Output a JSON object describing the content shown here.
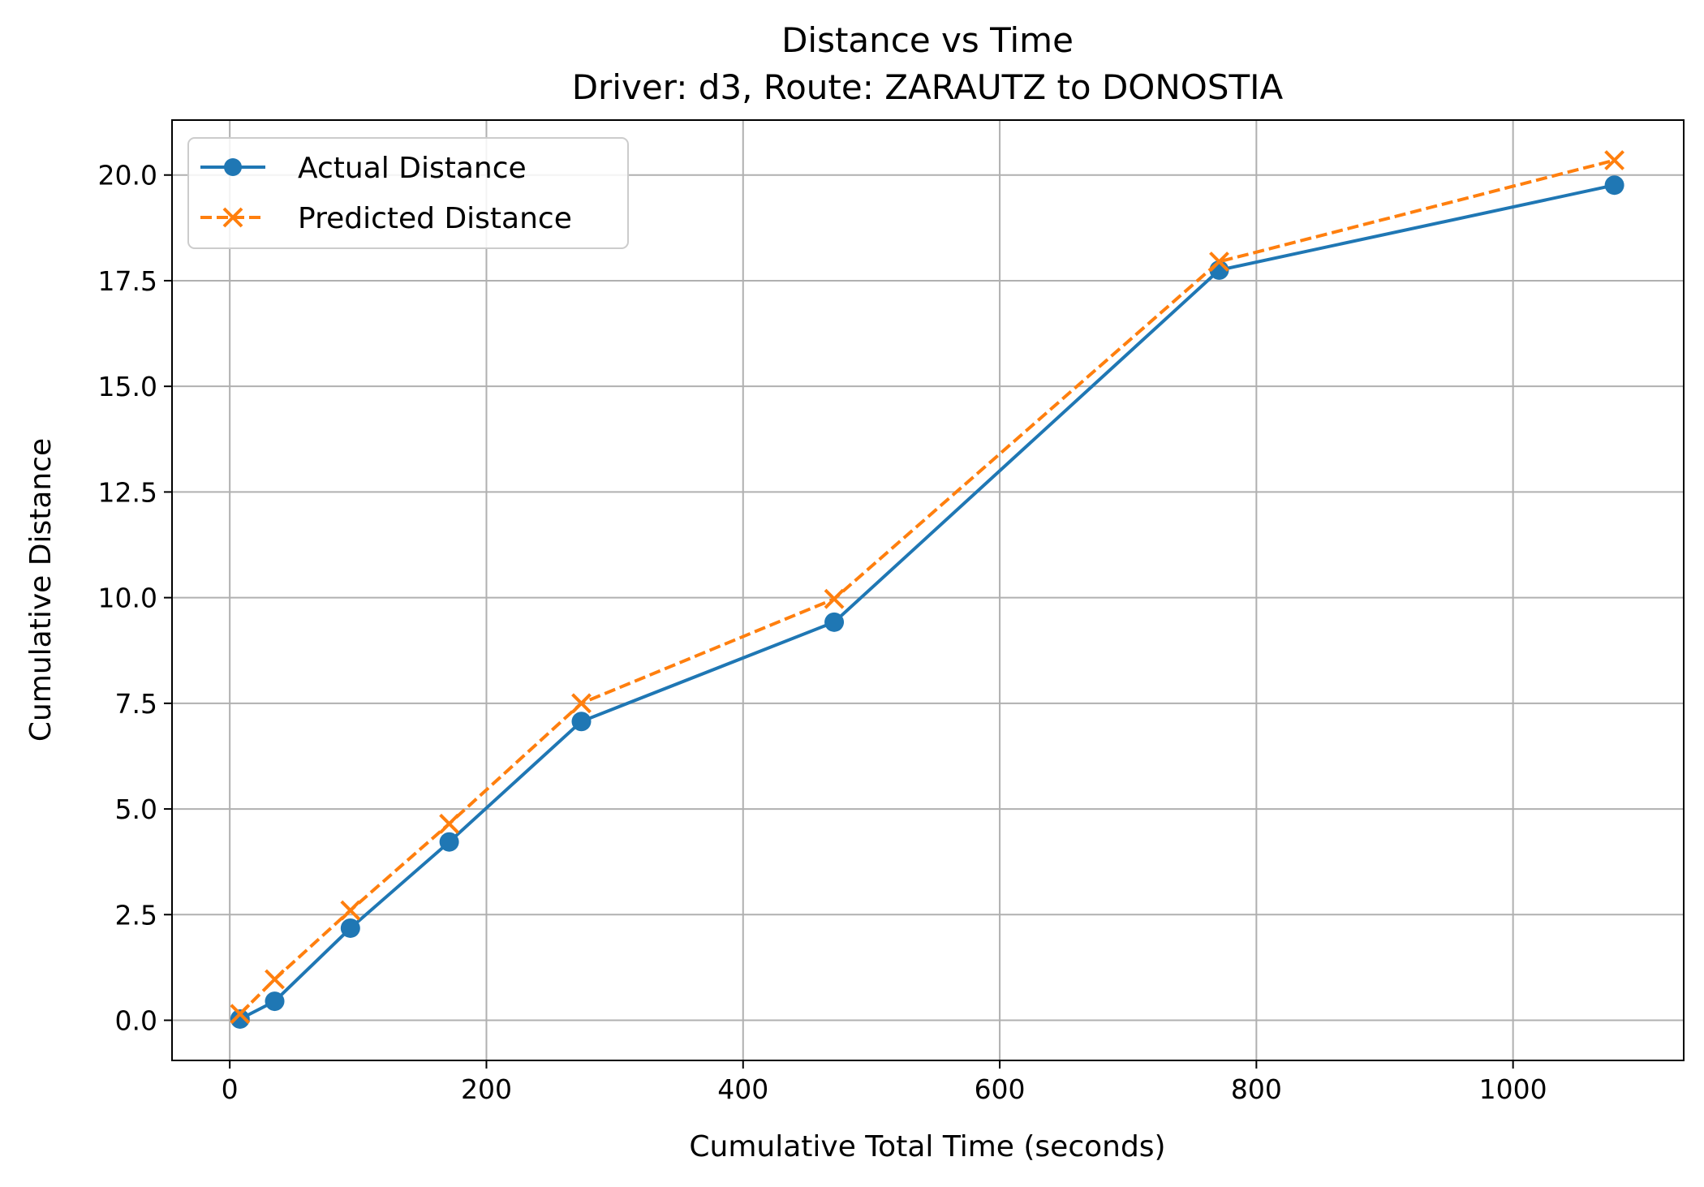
{
  "chart_data": {
    "type": "line",
    "title": "Distance vs Time",
    "subtitle": "Driver: d3, Route: ZARAUTZ to DONOSTIA",
    "xlabel": "Cumulative Total Time (seconds)",
    "ylabel": "Cumulative Distance",
    "xlim": [
      -45,
      1133
    ],
    "ylim": [
      -0.95,
      21.3
    ],
    "xticks": [
      0,
      200,
      400,
      600,
      800,
      1000
    ],
    "xtick_labels": [
      "0",
      "200",
      "400",
      "600",
      "800",
      "1000"
    ],
    "yticks": [
      0,
      2.5,
      5,
      7.5,
      10,
      12.5,
      15,
      17.5,
      20
    ],
    "ytick_labels": [
      "0.0",
      "2.5",
      "5.0",
      "7.5",
      "10.0",
      "12.5",
      "15.0",
      "17.5",
      "20.0"
    ],
    "grid": true,
    "legend_position": "upper-left",
    "x": [
      8,
      35,
      94,
      171,
      274,
      471,
      771,
      1079
    ],
    "series": [
      {
        "name": "Actual Distance",
        "values": [
          0.03,
          0.45,
          2.18,
          4.22,
          7.07,
          9.42,
          17.75,
          19.76
        ],
        "color": "#1f77b4",
        "line_style": "solid",
        "marker": "circle"
      },
      {
        "name": "Predicted Distance",
        "values": [
          0.15,
          0.97,
          2.6,
          4.65,
          7.5,
          9.97,
          17.95,
          20.35
        ],
        "color": "#ff7f0e",
        "line_style": "dashed",
        "marker": "x"
      }
    ]
  }
}
